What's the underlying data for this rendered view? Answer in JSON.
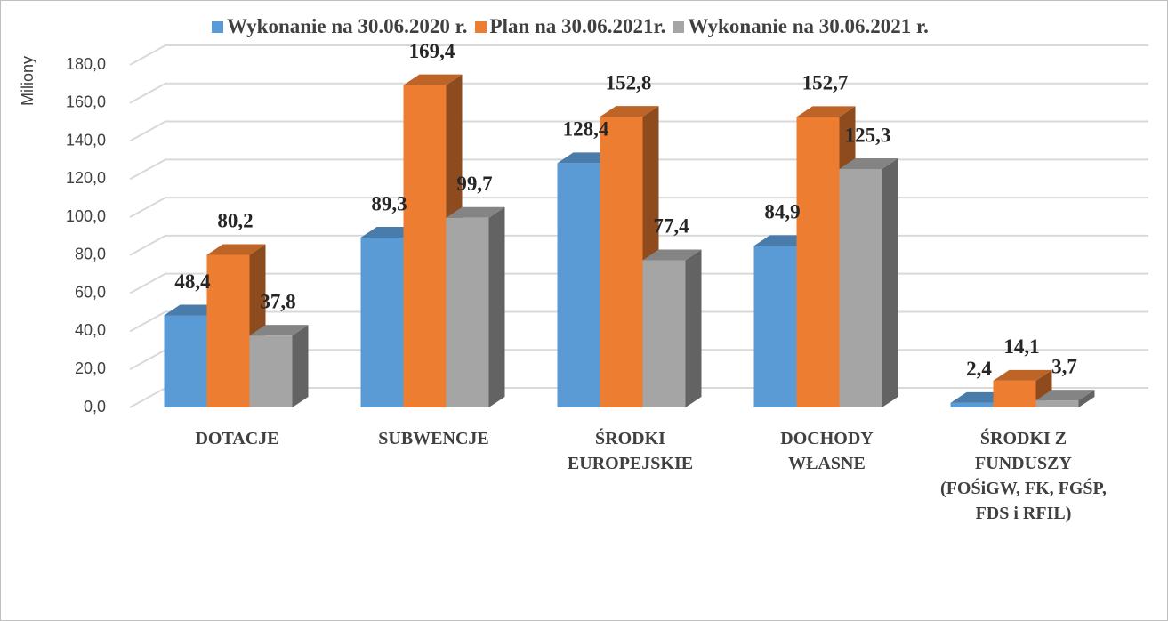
{
  "chart_data": {
    "type": "bar3d",
    "y_label": "Miliony",
    "categories": [
      "DOTACJE",
      "SUBWENCJE",
      "ŚRODKI EUROPEJSKIE",
      "DOCHODY WŁASNE",
      "ŚRODKI Z FUNDUSZY (FOŚiGW, FK, FGŚP, FDS i RFIL)"
    ],
    "series": [
      {
        "name": "Wykonanie na 30.06.2020 r.",
        "color": "#5b9bd5",
        "values": [
          48.4,
          89.3,
          128.4,
          84.9,
          2.4
        ],
        "value_labels": [
          "48,4",
          "89,3",
          "128,4",
          "84,9",
          "2,4"
        ]
      },
      {
        "name": "Plan na 30.06.2021r.",
        "color": "#ed7d31",
        "values": [
          80.2,
          169.4,
          152.8,
          152.7,
          14.1
        ],
        "value_labels": [
          "80,2",
          "169,4",
          "152,8",
          "152,7",
          "14,1"
        ]
      },
      {
        "name": "Wykonanie na 30.06.2021 r.",
        "color": "#a5a5a5",
        "values": [
          37.8,
          99.7,
          77.4,
          125.3,
          3.7
        ],
        "value_labels": [
          "37,8",
          "99,7",
          "77,4",
          "125,3",
          "3,7"
        ]
      }
    ],
    "ylim": [
      0,
      180
    ],
    "yticks": [
      {
        "value": 0,
        "label": "0,0"
      },
      {
        "value": 20,
        "label": "20,0"
      },
      {
        "value": 40,
        "label": "40,0"
      },
      {
        "value": 60,
        "label": "60,0"
      },
      {
        "value": 80,
        "label": "80,0"
      },
      {
        "value": 100,
        "label": "100,0"
      },
      {
        "value": 120,
        "label": "120,0"
      },
      {
        "value": 140,
        "label": "140,0"
      },
      {
        "value": 160,
        "label": "160,0"
      },
      {
        "value": 180,
        "label": "180,0"
      }
    ],
    "grid": true,
    "legend": "top"
  }
}
